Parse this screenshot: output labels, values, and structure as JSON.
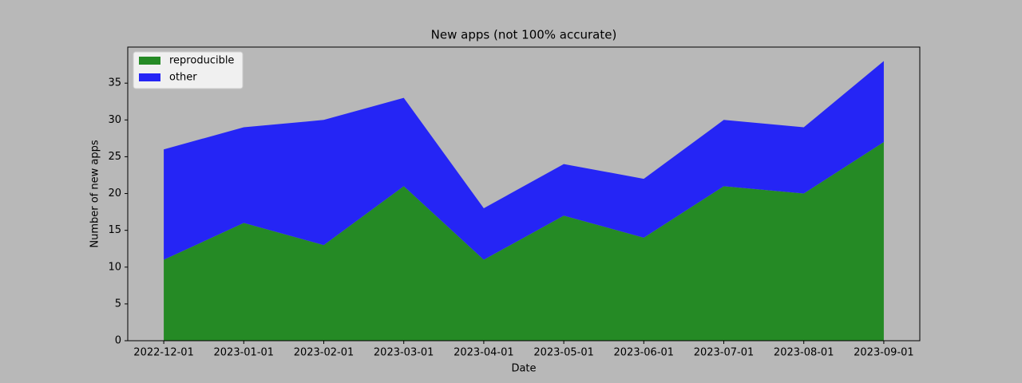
{
  "chart_data": {
    "type": "stacked-area",
    "title": "New apps (not 100% accurate)",
    "x_label": "Date",
    "y_label": "Number of new apps",
    "categories": [
      "2022-12-01",
      "2023-01-01",
      "2023-02-01",
      "2023-03-01",
      "2023-04-01",
      "2023-05-01",
      "2023-06-01",
      "2023-07-01",
      "2023-08-01",
      "2023-09-01"
    ],
    "series": [
      {
        "name": "reproducible",
        "color": "#258a25",
        "values": [
          11,
          16,
          13,
          21,
          11,
          17,
          14,
          21,
          20,
          27
        ]
      },
      {
        "name": "other",
        "color": "#2525f5",
        "values": [
          15,
          13,
          17,
          12,
          7,
          7,
          8,
          9,
          9,
          11
        ]
      }
    ],
    "ylim": [
      0,
      39.9
    ],
    "yticks": [
      0,
      5,
      10,
      15,
      20,
      25,
      30,
      35
    ],
    "legend": "upper left"
  }
}
